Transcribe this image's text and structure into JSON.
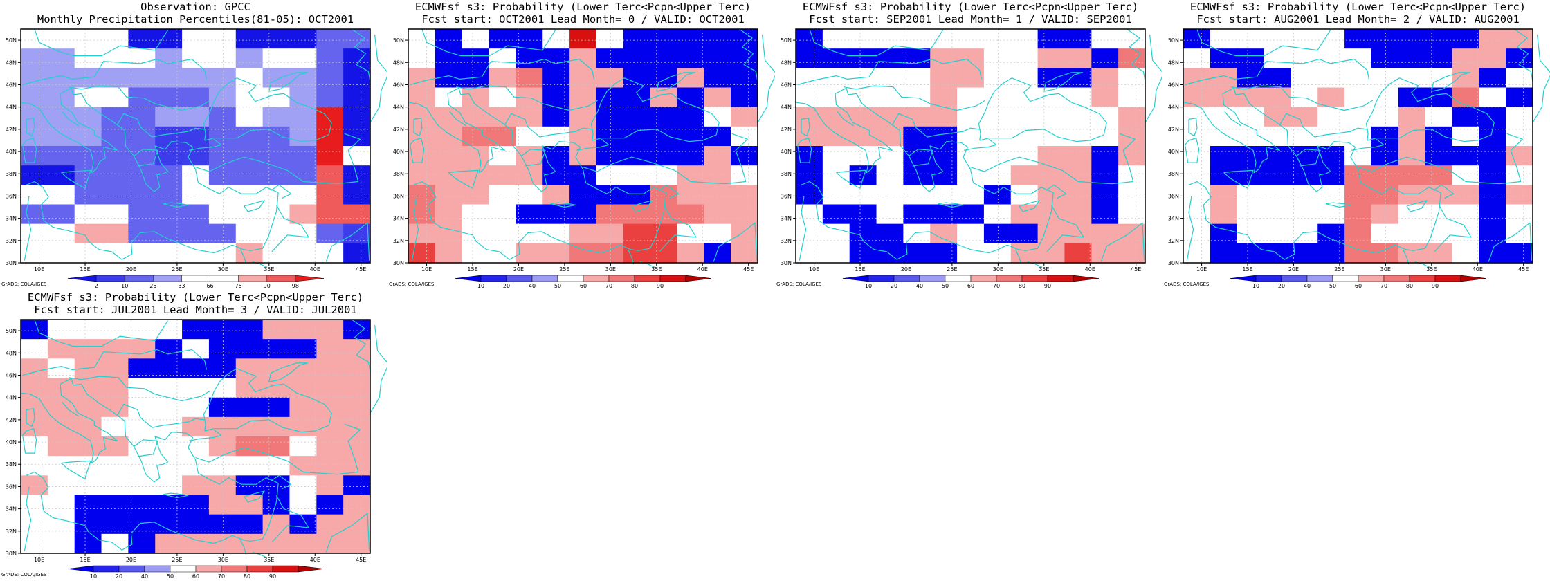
{
  "colors": {
    "grid_line": "#c8c8c8",
    "coast": "#22cfcf",
    "frame": "#000000",
    "percentile_scale": [
      "#1414e6",
      "#3c3cea",
      "#6464ef",
      "#a0a0f5",
      "#ffffff",
      "#ffffff",
      "#f7a8a8",
      "#ef5a5a",
      "#e81c1c"
    ],
    "probability_scale": [
      "#0000ee",
      "#2424ee",
      "#5a5af0",
      "#9c9cf5",
      "#ffffff",
      "#f7a8a8",
      "#f07878",
      "#ea4040",
      "#d81010",
      "#b40000"
    ]
  },
  "axes": {
    "lon_ticks": [
      "10E",
      "15E",
      "20E",
      "25E",
      "30E",
      "35E",
      "40E",
      "45E"
    ],
    "lat_ticks": [
      "30N",
      "32N",
      "34N",
      "36N",
      "38N",
      "40N",
      "42N",
      "44N",
      "46N",
      "48N",
      "50N"
    ],
    "lon_range": [
      8,
      46
    ],
    "lat_range": [
      30,
      51
    ]
  },
  "credit": "GrADS: COLA/IGES",
  "panels": [
    {
      "title_line1": "Observation: GPCC",
      "title_line2": "Monthly Precipitation Percentiles(81-05): OCT2001",
      "scale": "percentile_scale",
      "colorbar_labels": [
        "2",
        "10",
        "25",
        "33",
        "66",
        "75",
        "90",
        "98"
      ],
      "grid": [
        "4444004400022",
        "3344434434420",
        "3333333343320",
        "3344222344320",
        "3332233243380",
        "3332211222380",
        "2222211222284",
        "0022224222270",
        "4422224444470",
        "2244222444677",
        "4466222244421",
        "4444444464440"
      ]
    },
    {
      "title_line1": "ECMWFsf s3: Probability (Lower Terc<Pcpn<Upper Terc)",
      "title_line2": "Fcst start: OCT2001   Lead Month= 0 / VALID: OCT2001",
      "scale": "probability_scale",
      "colorbar_labels": [
        "10",
        "20",
        "40",
        "50",
        "60",
        "70",
        "80",
        "90"
      ],
      "grid": [
        "4040048400000",
        "4004005000000",
        "5005605500500",
        "5454505005050",
        "5555505000045",
        "5566445000004",
        "5554505000050",
        "5555500444554",
        "6554450006555",
        "6544000666655",
        "5544445577445",
        "7544556677505"
      ]
    },
    {
      "title_line1": "ECMWFsf s3: Probability (Lower Terc<Pcpn<Upper Terc)",
      "title_line2": "Fcst start: SEP2001   Lead Month= 1 / VALID: SEP2001",
      "scale": "probability_scale",
      "colorbar_labels": [
        "10",
        "20",
        "40",
        "50",
        "60",
        "70",
        "80",
        "90"
      ],
      "grid": [
        "0444444440044",
        "0000055445506",
        "4444455440054",
        "4444454444454",
        "5555554444445",
        "5555004444445",
        "0444004445505",
        "0404004455504",
        "0444444045504",
        "4004000455504",
        "4400454005555",
        "4400004455755"
      ]
    },
    {
      "title_line1": "ECMWFsf s3: Probability (Lower Terc<Pcpn<Upper Terc)",
      "title_line2": "Fcst start: AUG2001   Lead Month= 2 / VALID: AUG2001",
      "scale": "probability_scale",
      "colorbar_labels": [
        "10",
        "20",
        "40",
        "50",
        "60",
        "70",
        "80",
        "90"
      ],
      "grid": [
        "0444440000055",
        "4004444000550",
        "5500444444504",
        "5555454400640",
        "4445544454004",
        "4444444050404",
        "4000004050005",
        "4000006666404",
        "4544446655505",
        "4544446544404",
        "4044406444404",
        "4000006655400"
      ]
    },
    {
      "title_line1": "ECMWFsf s3: Probability (Lower Terc<Pcpn<Upper Terc)",
      "title_line2": "Fcst start: JUL2001   Lead Month= 3 / VALID: JUL2001",
      "scale": "probability_scale",
      "colorbar_labels": [
        "10",
        "20",
        "40",
        "50",
        "60",
        "70",
        "80",
        "90"
      ],
      "grid": [
        "0444440005550",
        "4555504000055",
        "5455000055555",
        "5555444455555",
        "5555444000555",
        "5554445555555",
        "4555444566455",
        "4444444444555",
        "5444445500450",
        "4400000550405",
        "4400000005055",
        "4404055555555"
      ]
    }
  ]
}
